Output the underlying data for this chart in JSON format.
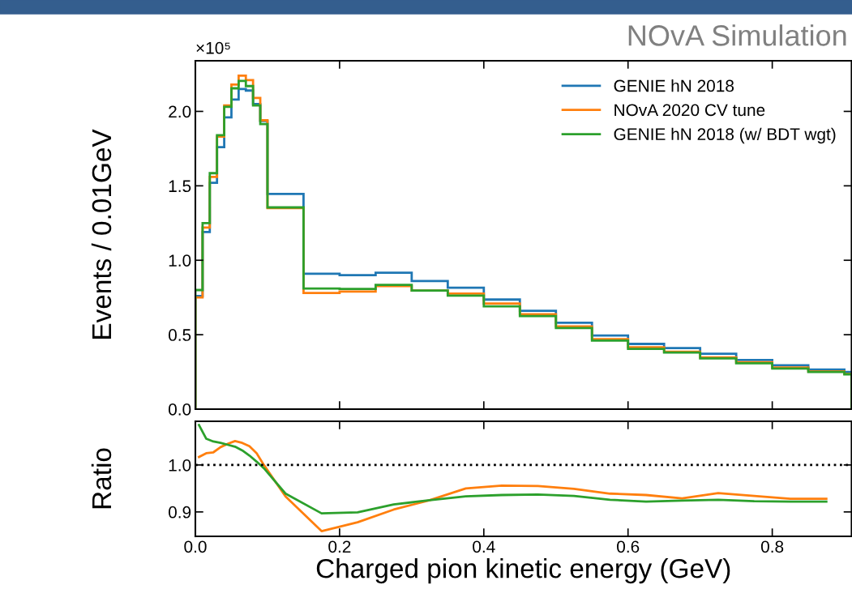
{
  "chart_data": [
    {
      "type": "histogram",
      "title": "NOvA Simulation",
      "ylabel": "Events / 0.01GeV",
      "annotations": [
        "×10⁵"
      ],
      "bins": [
        0,
        0.01,
        0.02,
        0.03,
        0.04,
        0.05,
        0.06,
        0.07,
        0.08,
        0.09,
        0.1,
        0.15,
        0.2,
        0.25,
        0.3,
        0.35,
        0.4,
        0.45,
        0.5,
        0.55,
        0.6,
        0.65,
        0.7,
        0.75,
        0.8,
        0.85,
        0.9,
        0.91
      ],
      "series": [
        {
          "name": "GENIE hN 2018",
          "color": "#1f77b4",
          "values": [
            0.76,
            1.19,
            1.52,
            1.76,
            1.96,
            2.08,
            2.15,
            2.14,
            2.05,
            1.935,
            1.445,
            0.909,
            0.9,
            0.916,
            0.86,
            0.816,
            0.736,
            0.66,
            0.58,
            0.495,
            0.438,
            0.41,
            0.372,
            0.33,
            0.294,
            0.266,
            0.25
          ]
        },
        {
          "name": "NOvA 2020 CV tune",
          "color": "#ff7f0e",
          "values": [
            0.75,
            1.22,
            1.56,
            1.83,
            2.04,
            2.18,
            2.24,
            2.21,
            2.09,
            1.94,
            1.35,
            0.78,
            0.79,
            0.826,
            0.797,
            0.776,
            0.71,
            0.637,
            0.556,
            0.47,
            0.415,
            0.386,
            0.348,
            0.315,
            0.28,
            0.254,
            0.237
          ]
        },
        {
          "name": "GENIE hN 2018 (w/ BDT wgt)",
          "color": "#2ca02c",
          "values": [
            0.8,
            1.25,
            1.585,
            1.84,
            2.03,
            2.155,
            2.205,
            2.17,
            2.04,
            1.915,
            1.355,
            0.81,
            0.807,
            0.835,
            0.797,
            0.762,
            0.69,
            0.625,
            0.545,
            0.46,
            0.405,
            0.38,
            0.341,
            0.308,
            0.273,
            0.25,
            0.234
          ]
        }
      ],
      "xlim": [
        0,
        0.91
      ],
      "ylim": [
        0,
        2.34
      ],
      "xticks": [
        0,
        0.2,
        0.4,
        0.6,
        0.8
      ],
      "yticks": [
        {
          "value": 0,
          "label": "0.0"
        },
        {
          "value": 0.5,
          "label": "0.5"
        },
        {
          "value": 1.0,
          "label": "1.0"
        },
        {
          "value": 1.5,
          "label": "1.5"
        },
        {
          "value": 2.0,
          "label": "2.0"
        }
      ],
      "tick_labels": "y",
      "legend": "top right",
      "grid": false
    },
    {
      "type": "line",
      "xlabel": "Charged pion kinetic energy (GeV)",
      "ylabel": "Ratio",
      "x": [
        0.005,
        0.015,
        0.025,
        0.035,
        0.045,
        0.055,
        0.065,
        0.075,
        0.085,
        0.095,
        0.125,
        0.175,
        0.225,
        0.275,
        0.325,
        0.375,
        0.425,
        0.475,
        0.525,
        0.575,
        0.625,
        0.675,
        0.725,
        0.775,
        0.825,
        0.875
      ],
      "series": [
        {
          "color": "#ff7f0e",
          "values": [
            1.017,
            1.025,
            1.027,
            1.038,
            1.045,
            1.051,
            1.047,
            1.04,
            1.025,
            1.0,
            0.933,
            0.859,
            0.878,
            0.905,
            0.925,
            0.95,
            0.956,
            0.955,
            0.949,
            0.939,
            0.936,
            0.929,
            0.94,
            0.934,
            0.928,
            0.928
          ]
        },
        {
          "color": "#2ca02c",
          "values": [
            1.085,
            1.056,
            1.05,
            1.047,
            1.043,
            1.039,
            1.031,
            1.02,
            1.007,
            0.993,
            0.939,
            0.897,
            0.899,
            0.916,
            0.925,
            0.933,
            0.936,
            0.937,
            0.934,
            0.926,
            0.922,
            0.924,
            0.926,
            0.923,
            0.922,
            0.922
          ]
        }
      ],
      "ref_lines": [
        {
          "axis": "y",
          "value": 1.0,
          "color": "#000000",
          "line_style": "dotted"
        }
      ],
      "xlim": [
        0,
        0.91
      ],
      "ylim": [
        0.848,
        1.093
      ],
      "xticks": [
        {
          "value": 0,
          "label": "0.0"
        },
        {
          "value": 0.2,
          "label": "0.2"
        },
        {
          "value": 0.4,
          "label": "0.4"
        },
        {
          "value": 0.6,
          "label": "0.6"
        },
        {
          "value": 0.8,
          "label": "0.8"
        }
      ],
      "yticks": [
        {
          "value": 0.9,
          "label": "0.9"
        },
        {
          "value": 1.0,
          "label": "1.0"
        }
      ],
      "marker": "none",
      "line_style": "solid",
      "grid": false,
      "legend": false
    }
  ]
}
